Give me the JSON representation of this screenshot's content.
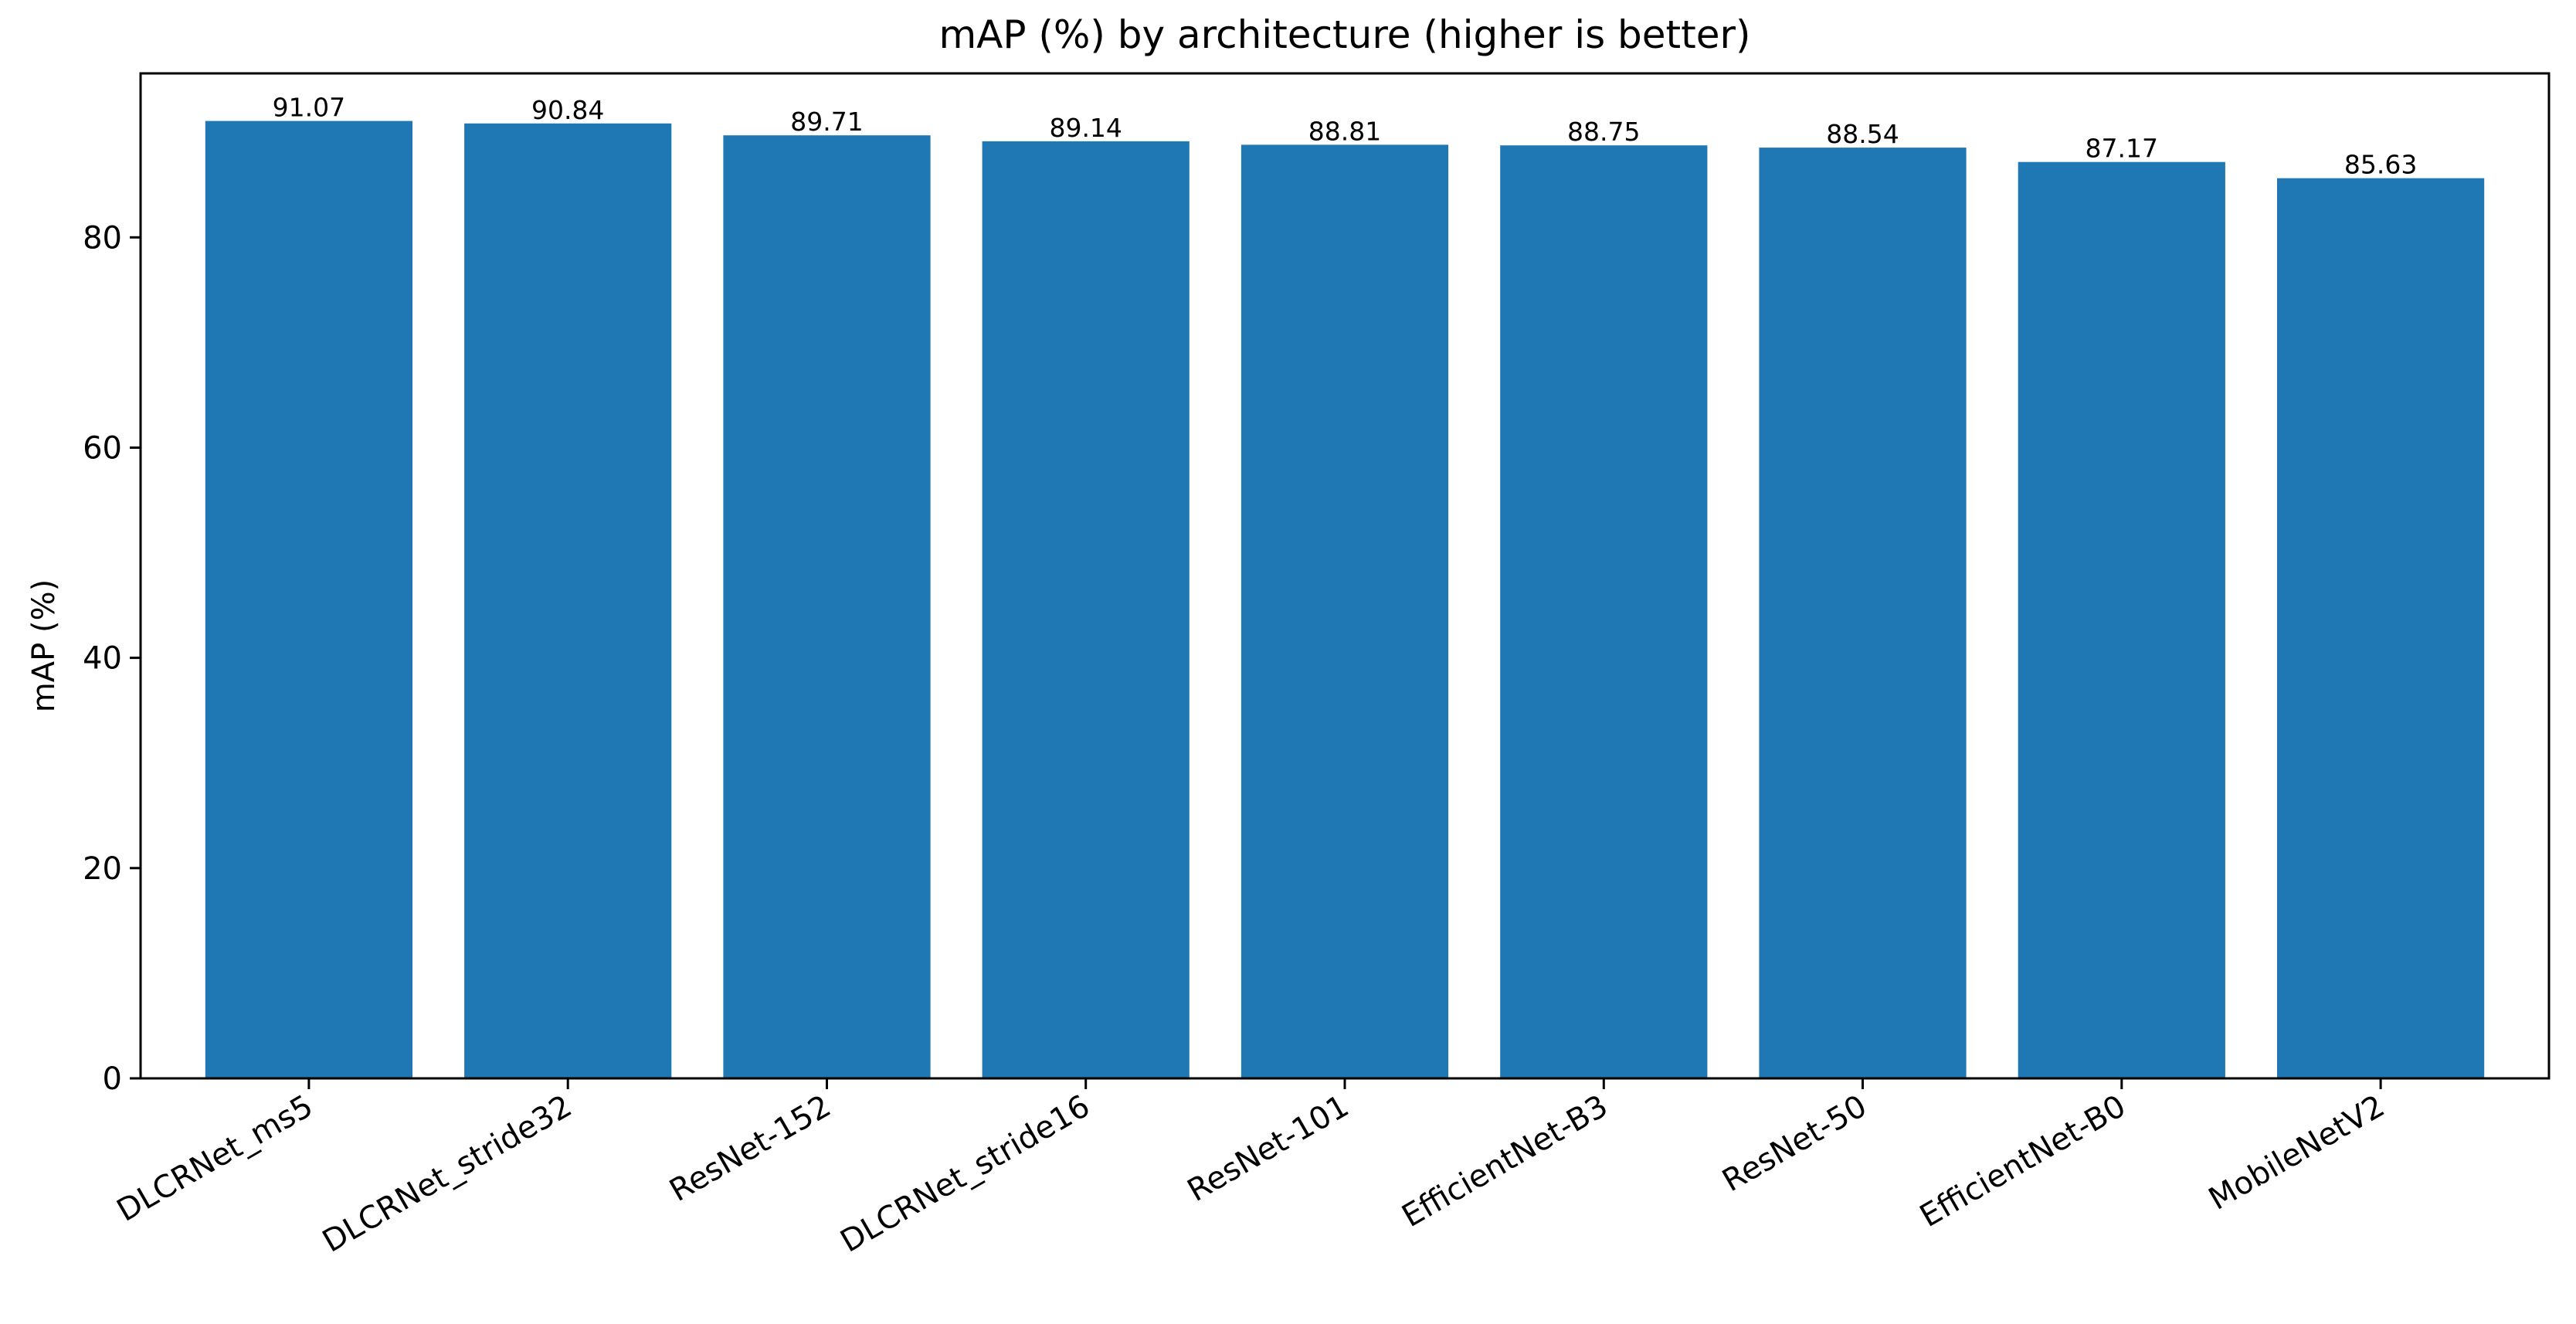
{
  "chart_data": {
    "type": "bar",
    "title": "mAP (%) by architecture (higher is better)",
    "xlabel": "",
    "ylabel": "mAP (%)",
    "categories": [
      "DLCRNet_ms5",
      "DLCRNet_stride32",
      "ResNet-152",
      "DLCRNet_stride16",
      "ResNet-101",
      "EfficientNet-B3",
      "ResNet-50",
      "EfficientNet-B0",
      "MobileNetV2"
    ],
    "values": [
      91.07,
      90.84,
      89.71,
      89.14,
      88.81,
      88.75,
      88.54,
      87.17,
      85.63
    ],
    "data_labels": [
      "91.07",
      "90.84",
      "89.71",
      "89.14",
      "88.81",
      "88.75",
      "88.54",
      "87.17",
      "85.63"
    ],
    "ylim": [
      0,
      95.6
    ],
    "yticks": [
      0,
      20,
      40,
      60,
      80
    ],
    "ytick_labels": [
      "0",
      "20",
      "40",
      "60",
      "80"
    ],
    "grid": false,
    "legend": "none",
    "bar_color": "#1f77b4"
  }
}
